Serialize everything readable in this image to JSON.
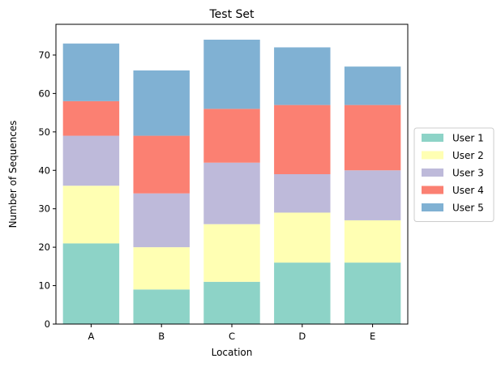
{
  "chart_data": {
    "type": "bar",
    "stacked": true,
    "title": "Test Set",
    "xlabel": "Location",
    "ylabel": "Number of Sequences",
    "categories": [
      "A",
      "B",
      "C",
      "D",
      "E"
    ],
    "ylim": [
      0,
      78
    ],
    "yticks": [
      0,
      10,
      20,
      30,
      40,
      50,
      60,
      70
    ],
    "grid": false,
    "legend_position": "right",
    "series": [
      {
        "name": "User 1",
        "color": "#8dd3c7",
        "values": [
          21,
          9,
          11,
          16,
          16
        ]
      },
      {
        "name": "User 2",
        "color": "#ffffb3",
        "values": [
          15,
          11,
          15,
          13,
          11
        ]
      },
      {
        "name": "User 3",
        "color": "#bebada",
        "values": [
          13,
          14,
          16,
          10,
          13
        ]
      },
      {
        "name": "User 4",
        "color": "#fb8072",
        "values": [
          9,
          15,
          14,
          18,
          17
        ]
      },
      {
        "name": "User 5",
        "color": "#80b1d3",
        "values": [
          15,
          17,
          18,
          15,
          10
        ]
      }
    ]
  }
}
